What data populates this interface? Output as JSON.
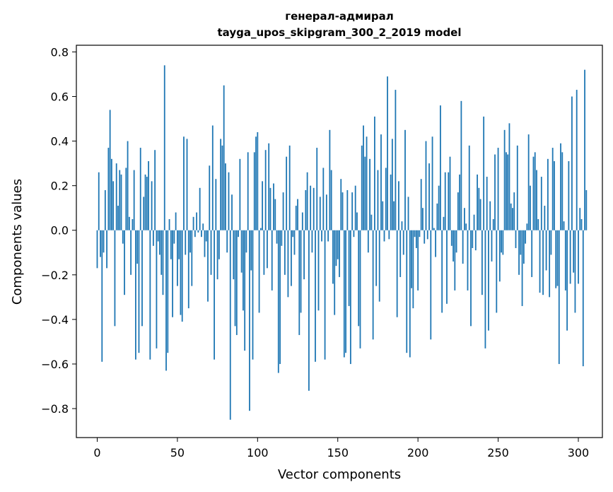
{
  "chart_data": {
    "type": "bar",
    "title": "генерал-адмирал",
    "subtitle": "tayga_upos_skipgram_300_2_2019 model",
    "xlabel": "Vector components",
    "ylabel": "Components values",
    "xlim": [
      -13,
      315
    ],
    "ylim": [
      -0.93,
      0.83
    ],
    "xticks": [
      0,
      50,
      100,
      150,
      200,
      250,
      300
    ],
    "yticks": [
      -0.8,
      -0.6,
      -0.4,
      -0.2,
      0.0,
      0.2,
      0.4,
      0.6,
      0.8
    ],
    "xtick_labels": [
      "0",
      "50",
      "100",
      "150",
      "200",
      "250",
      "300"
    ],
    "ytick_labels": [
      "−0.8",
      "−0.6",
      "−0.4",
      "−0.2",
      "0.0",
      "0.2",
      "0.4",
      "0.6",
      "0.8"
    ],
    "bar_color": "#1f77b4",
    "grid": false,
    "values": [
      -0.17,
      0.26,
      -0.12,
      -0.59,
      -0.1,
      0.18,
      -0.17,
      0.37,
      0.54,
      0.32,
      0.22,
      -0.43,
      0.3,
      0.11,
      0.27,
      0.25,
      -0.06,
      -0.29,
      0.28,
      0.4,
      0.06,
      -0.2,
      0.05,
      0.27,
      -0.58,
      -0.15,
      -0.55,
      0.37,
      -0.43,
      0.15,
      0.25,
      0.24,
      0.31,
      -0.58,
      0.22,
      -0.07,
      0.36,
      -0.53,
      -0.05,
      -0.11,
      -0.2,
      -0.29,
      0.74,
      -0.63,
      -0.55,
      0.05,
      -0.13,
      -0.39,
      -0.06,
      0.08,
      -0.25,
      -0.13,
      -0.38,
      -0.41,
      0.42,
      -0.11,
      0.41,
      -0.35,
      -0.1,
      -0.25,
      0.06,
      -0.03,
      0.08,
      -0.01,
      0.19,
      -0.03,
      0.03,
      -0.12,
      -0.05,
      -0.32,
      0.29,
      -0.2,
      0.47,
      -0.58,
      0.23,
      -0.22,
      -0.13,
      0.41,
      0.38,
      0.65,
      0.3,
      -0.1,
      0.26,
      -0.85,
      0.16,
      -0.22,
      -0.43,
      -0.47,
      -0.03,
      0.32,
      -0.19,
      -0.36,
      -0.54,
      -0.1,
      0.35,
      -0.81,
      -0.18,
      -0.58,
      0.35,
      0.42,
      0.44,
      -0.37,
      0.01,
      0.22,
      -0.2,
      0.36,
      -0.17,
      0.39,
      0.19,
      -0.27,
      0.21,
      0.14,
      -0.06,
      -0.64,
      -0.6,
      -0.07,
      0.17,
      -0.2,
      0.33,
      -0.3,
      0.38,
      -0.25,
      -0.03,
      -0.11,
      0.11,
      0.14,
      -0.47,
      -0.37,
      0.08,
      -0.22,
      0.18,
      0.26,
      -0.72,
      0.2,
      -0.1,
      0.19,
      -0.59,
      0.37,
      -0.36,
      0.15,
      -0.05,
      0.28,
      -0.58,
      0.16,
      -0.05,
      0.45,
      0.27,
      -0.24,
      -0.38,
      -0.16,
      -0.13,
      -0.21,
      0.23,
      0.17,
      -0.57,
      -0.55,
      0.18,
      -0.34,
      -0.6,
      0.17,
      -0.03,
      0.2,
      0.08,
      -0.43,
      -0.53,
      0.38,
      0.47,
      0.33,
      0.42,
      -0.1,
      0.32,
      0.07,
      -0.49,
      0.51,
      -0.25,
      0.27,
      -0.32,
      0.43,
      0.13,
      -0.05,
      0.28,
      0.69,
      -0.04,
      0.25,
      0.41,
      0.13,
      0.63,
      -0.39,
      0.22,
      -0.21,
      0.04,
      -0.11,
      0.45,
      -0.55,
      0.15,
      -0.57,
      -0.26,
      -0.35,
      -0.03,
      -0.08,
      -0.27,
      -0.03,
      0.23,
      0.1,
      -0.06,
      0.4,
      -0.04,
      0.3,
      -0.49,
      0.42,
      0.01,
      -0.12,
      0.12,
      0.2,
      0.56,
      -0.37,
      0.06,
      0.26,
      -0.33,
      0.26,
      0.33,
      -0.07,
      -0.14,
      -0.27,
      -0.1,
      0.17,
      0.25,
      0.58,
      -0.15,
      0.1,
      0.03,
      -0.27,
      0.38,
      -0.43,
      -0.08,
      0.07,
      -0.09,
      0.25,
      0.19,
      0.14,
      -0.29,
      0.51,
      -0.53,
      0.24,
      -0.45,
      0.13,
      -0.14,
      0.05,
      0.34,
      -0.37,
      0.37,
      -0.23,
      -0.1,
      -0.11,
      0.45,
      0.35,
      0.34,
      0.48,
      0.12,
      0.1,
      0.17,
      -0.08,
      0.38,
      -0.2,
      -0.11,
      -0.34,
      -0.15,
      -0.06,
      0.03,
      0.43,
      0.2,
      -0.21,
      0.33,
      0.35,
      0.27,
      0.05,
      -0.28,
      0.24,
      -0.29,
      0.11,
      -0.18,
      0.32,
      -0.3,
      -0.11,
      0.37,
      0.31,
      -0.26,
      -0.25,
      -0.6,
      0.39,
      0.35,
      0.04,
      -0.27,
      -0.45,
      0.31,
      -0.24,
      0.6,
      -0.19,
      -0.37,
      0.63,
      -0.24,
      0.1,
      0.05,
      -0.61,
      0.72,
      0.18
    ]
  }
}
